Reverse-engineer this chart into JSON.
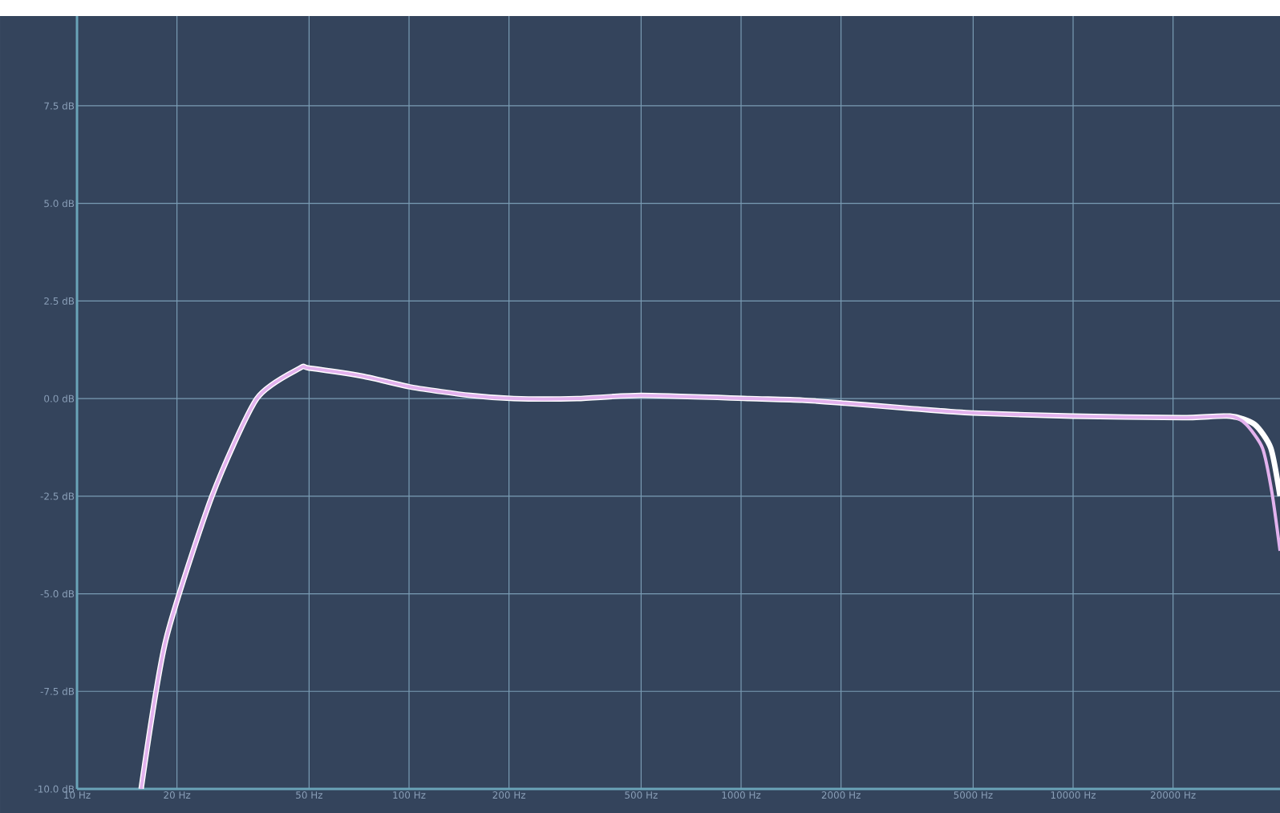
{
  "chart_data": {
    "type": "line",
    "log": "x",
    "grid": true,
    "marker": "none",
    "line_style": "solid",
    "xlim": [
      10,
      42000
    ],
    "ylim": [
      -10,
      9.8
    ],
    "xticks": [
      {
        "value": 10,
        "label": "10 Hz"
      },
      {
        "value": 20,
        "label": "20 Hz"
      },
      {
        "value": 50,
        "label": "50 Hz"
      },
      {
        "value": 100,
        "label": "100 Hz"
      },
      {
        "value": 200,
        "label": "200 Hz"
      },
      {
        "value": 500,
        "label": "500 Hz"
      },
      {
        "value": 1000,
        "label": "1000 Hz"
      },
      {
        "value": 2000,
        "label": "2000 Hz"
      },
      {
        "value": 5000,
        "label": "5000 Hz"
      },
      {
        "value": 10000,
        "label": "10000 Hz"
      },
      {
        "value": 20000,
        "label": "20000 Hz"
      }
    ],
    "yticks": [
      {
        "value": -10,
        "label": "-10.0 dB"
      },
      {
        "value": -7.5,
        "label": "-7.5 dB"
      },
      {
        "value": -5,
        "label": "-5.0 dB"
      },
      {
        "value": -2.5,
        "label": "-2.5 dB"
      },
      {
        "value": 0,
        "label": "0.0 dB"
      },
      {
        "value": 2.5,
        "label": "2.5 dB"
      },
      {
        "value": 5,
        "label": "5.0 dB"
      },
      {
        "value": 7.5,
        "label": "7.5 dB"
      }
    ],
    "series": [
      {
        "color": "#ffffff",
        "x": [
          15.6,
          18.5,
          25.5,
          34.8,
          46.9,
          50,
          73,
          102,
          153,
          207,
          321,
          500,
          1057,
          1528,
          2060,
          3210,
          5000,
          10000,
          21300,
          29700,
          35200,
          39400,
          42000
        ],
        "values": [
          -10,
          -6.2,
          -2.5,
          0,
          0.78,
          0.78,
          0.57,
          0.29,
          0.08,
          0,
          0,
          0.08,
          0,
          -0.04,
          -0.12,
          -0.25,
          -0.37,
          -0.45,
          -0.49,
          -0.45,
          -0.66,
          -1.27,
          -2.5
        ]
      },
      {
        "color": "#e3b2ee",
        "x": [
          15.6,
          18.5,
          25.5,
          34.8,
          46.9,
          50,
          73,
          102,
          153,
          207,
          321,
          500,
          1057,
          1528,
          2060,
          3210,
          5000,
          10000,
          21300,
          29700,
          33200,
          37200,
          39700,
          42000
        ],
        "values": [
          -10,
          -6.2,
          -2.5,
          0,
          0.78,
          0.78,
          0.57,
          0.29,
          0.08,
          0,
          0,
          0.08,
          0,
          -0.04,
          -0.12,
          -0.25,
          -0.37,
          -0.45,
          -0.49,
          -0.45,
          -0.66,
          -1.27,
          -2.4,
          -3.9
        ]
      }
    ]
  }
}
